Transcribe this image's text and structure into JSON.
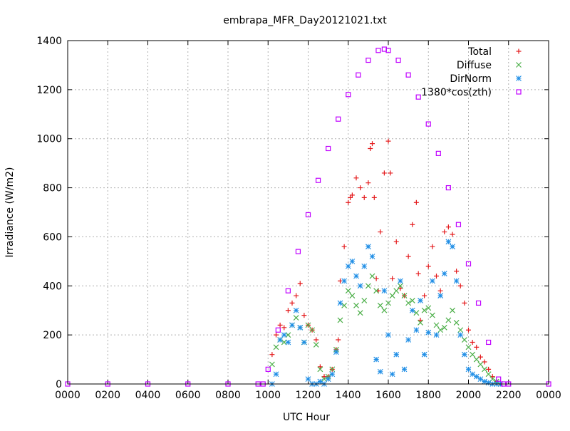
{
  "chart_data": {
    "type": "scatter",
    "title": "embrapa_MFR_Day20121021.txt",
    "xlabel": "UTC Hour",
    "ylabel": "Irradiance (W/m2)",
    "xlim": [
      0,
      24
    ],
    "ylim": [
      0,
      1400
    ],
    "grid": true,
    "legend_position": "top-right",
    "x_ticks": [
      {
        "value": 0,
        "label": "0000"
      },
      {
        "value": 2,
        "label": "0200"
      },
      {
        "value": 4,
        "label": "0400"
      },
      {
        "value": 6,
        "label": "0600"
      },
      {
        "value": 8,
        "label": "0800"
      },
      {
        "value": 10,
        "label": "1000"
      },
      {
        "value": 12,
        "label": "1200"
      },
      {
        "value": 14,
        "label": "1400"
      },
      {
        "value": 16,
        "label": "1600"
      },
      {
        "value": 18,
        "label": "1800"
      },
      {
        "value": 20,
        "label": "2000"
      },
      {
        "value": 22,
        "label": "2200"
      },
      {
        "value": 24,
        "label": "0000"
      }
    ],
    "y_ticks": [
      {
        "value": 0,
        "label": "0"
      },
      {
        "value": 200,
        "label": "200"
      },
      {
        "value": 400,
        "label": "400"
      },
      {
        "value": 600,
        "label": "600"
      },
      {
        "value": 800,
        "label": "800"
      },
      {
        "value": 1000,
        "label": "1000"
      },
      {
        "value": 1200,
        "label": "1200"
      },
      {
        "value": 1400,
        "label": "1400"
      }
    ],
    "series": [
      {
        "name": "Total",
        "marker": "plus",
        "color": "#e41a1c",
        "x": [
          10.2,
          10.4,
          10.6,
          10.8,
          11.0,
          11.2,
          11.4,
          11.6,
          11.8,
          12.0,
          12.2,
          12.4,
          12.6,
          12.8,
          13.0,
          13.2,
          13.4,
          13.5,
          13.6,
          13.8,
          14.0,
          14.1,
          14.2,
          14.4,
          14.6,
          14.8,
          15.0,
          15.1,
          15.2,
          15.3,
          15.4,
          15.5,
          15.6,
          15.8,
          16.0,
          16.1,
          16.2,
          16.4,
          16.6,
          16.8,
          17.0,
          17.2,
          17.4,
          17.5,
          17.6,
          17.8,
          18.0,
          18.2,
          18.4,
          18.6,
          18.8,
          19.0,
          19.2,
          19.4,
          19.6,
          19.8,
          20.0,
          20.2,
          20.4,
          20.6,
          20.8,
          21.0,
          21.2,
          21.4,
          21.6
        ],
        "values": [
          120,
          200,
          240,
          230,
          300,
          330,
          360,
          410,
          280,
          240,
          220,
          180,
          70,
          30,
          30,
          60,
          140,
          180,
          420,
          560,
          740,
          760,
          770,
          840,
          800,
          760,
          820,
          960,
          980,
          760,
          430,
          380,
          620,
          860,
          990,
          860,
          430,
          580,
          390,
          360,
          520,
          650,
          740,
          450,
          260,
          360,
          480,
          560,
          440,
          380,
          620,
          640,
          610,
          460,
          400,
          330,
          220,
          170,
          150,
          110,
          90,
          60,
          30,
          10,
          0
        ]
      },
      {
        "name": "Diffuse",
        "marker": "cross",
        "color": "#4daf4a",
        "x": [
          10.2,
          10.4,
          10.6,
          10.8,
          11.0,
          11.2,
          11.4,
          11.6,
          11.8,
          12.0,
          12.2,
          12.4,
          12.6,
          12.8,
          13.0,
          13.2,
          13.4,
          13.6,
          13.8,
          14.0,
          14.2,
          14.4,
          14.6,
          14.8,
          15.0,
          15.2,
          15.4,
          15.6,
          15.8,
          16.0,
          16.2,
          16.4,
          16.6,
          16.8,
          17.0,
          17.2,
          17.4,
          17.6,
          17.8,
          18.0,
          18.2,
          18.4,
          18.6,
          18.8,
          19.0,
          19.2,
          19.4,
          19.6,
          19.8,
          20.0,
          20.2,
          20.4,
          20.6,
          20.8,
          21.0,
          21.2,
          21.4,
          21.6
        ],
        "values": [
          80,
          150,
          180,
          170,
          200,
          240,
          270,
          230,
          170,
          240,
          220,
          160,
          60,
          20,
          30,
          60,
          140,
          260,
          320,
          380,
          360,
          320,
          290,
          340,
          400,
          440,
          380,
          320,
          300,
          330,
          360,
          380,
          400,
          360,
          330,
          340,
          290,
          250,
          300,
          310,
          280,
          240,
          220,
          230,
          260,
          300,
          250,
          220,
          180,
          150,
          120,
          100,
          80,
          60,
          40,
          20,
          10,
          0
        ]
      },
      {
        "name": "DirNorm",
        "marker": "star",
        "color": "#1f8ee6",
        "x": [
          10.2,
          10.4,
          10.6,
          10.8,
          11.0,
          11.2,
          11.4,
          11.6,
          11.8,
          12.0,
          12.2,
          12.4,
          12.6,
          12.8,
          13.0,
          13.2,
          13.4,
          13.6,
          13.8,
          14.0,
          14.2,
          14.4,
          14.6,
          14.8,
          15.0,
          15.2,
          15.4,
          15.6,
          15.8,
          16.0,
          16.2,
          16.4,
          16.6,
          16.8,
          17.0,
          17.2,
          17.4,
          17.6,
          17.8,
          18.0,
          18.2,
          18.4,
          18.6,
          18.8,
          19.0,
          19.2,
          19.4,
          19.6,
          19.8,
          20.0,
          20.2,
          20.4,
          20.6,
          20.8,
          21.0,
          21.2,
          21.4,
          21.6
        ],
        "values": [
          0,
          40,
          180,
          200,
          170,
          240,
          300,
          230,
          170,
          20,
          0,
          0,
          10,
          0,
          20,
          40,
          130,
          330,
          420,
          480,
          500,
          440,
          400,
          480,
          560,
          520,
          100,
          50,
          380,
          200,
          40,
          120,
          420,
          60,
          180,
          300,
          220,
          340,
          120,
          210,
          420,
          200,
          360,
          450,
          580,
          560,
          420,
          200,
          120,
          60,
          40,
          30,
          20,
          10,
          5,
          0,
          0,
          0
        ]
      },
      {
        "name": "1380*cos(zth)",
        "marker": "square",
        "color": "#c000ff",
        "x": [
          0,
          2,
          4,
          6,
          8,
          9.5,
          9.75,
          10,
          10.5,
          11,
          11.5,
          12,
          12.5,
          13,
          13.5,
          14,
          14.5,
          15,
          15.5,
          15.8,
          16,
          16.5,
          17,
          17.5,
          18,
          18.5,
          19,
          19.5,
          20,
          20.5,
          21,
          21.5,
          21.75,
          22,
          24
        ],
        "values": [
          0,
          0,
          0,
          0,
          0,
          0,
          0,
          60,
          220,
          380,
          540,
          690,
          830,
          960,
          1080,
          1180,
          1260,
          1320,
          1360,
          1365,
          1360,
          1320,
          1260,
          1170,
          1060,
          940,
          800,
          650,
          490,
          330,
          170,
          20,
          0,
          0,
          0
        ]
      }
    ]
  }
}
